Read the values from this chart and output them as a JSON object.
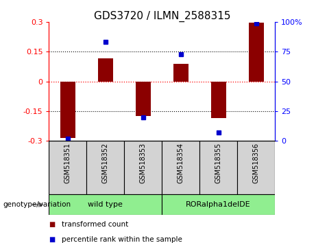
{
  "title": "GDS3720 / ILMN_2588315",
  "samples": [
    "GSM518351",
    "GSM518352",
    "GSM518353",
    "GSM518354",
    "GSM518355",
    "GSM518356"
  ],
  "transformed_count": [
    -0.285,
    0.115,
    -0.175,
    0.09,
    -0.185,
    0.295
  ],
  "percentile_rank": [
    2,
    83,
    20,
    73,
    7,
    99
  ],
  "ylim_left": [
    -0.3,
    0.3
  ],
  "ylim_right": [
    0,
    100
  ],
  "yticks_left": [
    -0.3,
    -0.15,
    0,
    0.15,
    0.3
  ],
  "yticks_right": [
    0,
    25,
    50,
    75,
    100
  ],
  "bar_color": "#8B0000",
  "dot_color": "#0000CD",
  "sample_bg_color": "#D3D3D3",
  "genotype_colors": [
    "#90EE90",
    "#90EE90"
  ],
  "genotype_labels": [
    "wild type",
    "RORalpha1delDE"
  ],
  "genotype_label": "genotype/variation",
  "legend_items": [
    {
      "label": "transformed count",
      "color": "#8B0000"
    },
    {
      "label": "percentile rank within the sample",
      "color": "#0000CD"
    }
  ],
  "title_fontsize": 11,
  "tick_fontsize": 8,
  "bar_width": 0.4
}
